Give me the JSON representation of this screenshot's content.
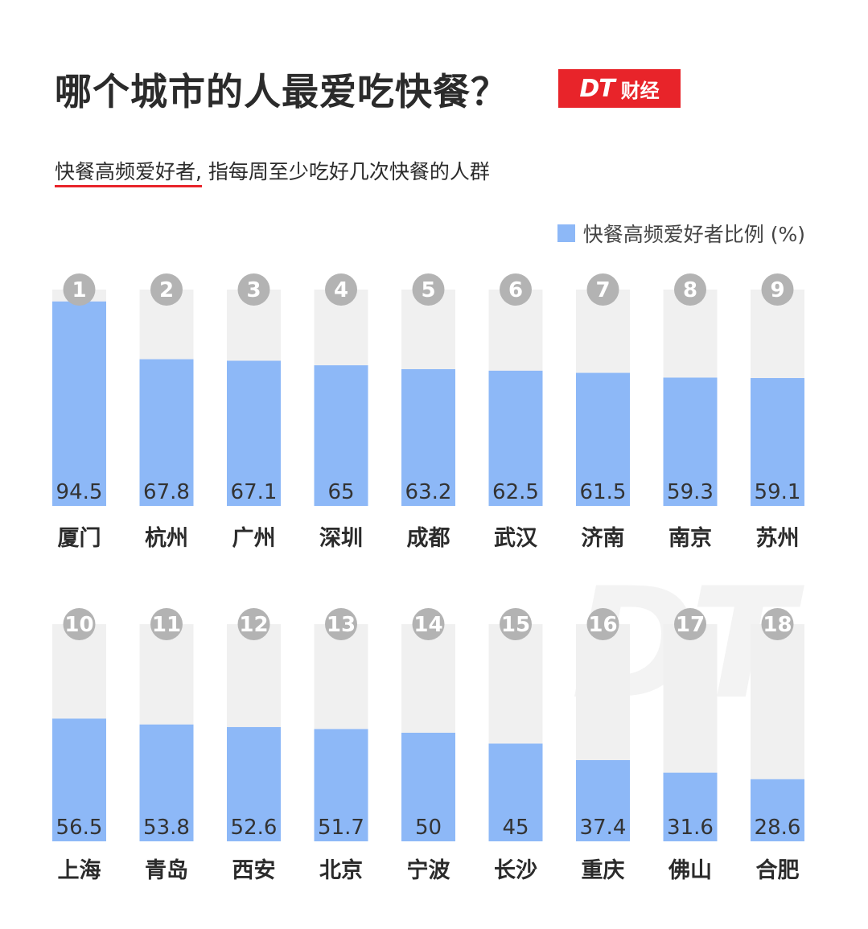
{
  "header": {
    "title": "哪个城市的人最爱吃快餐？",
    "brand_logo": "DT",
    "brand_name": "财经",
    "subtitle_term": "快餐高频爱好者,",
    "subtitle_rest": " 指每周至少吃好几次快餐的人群"
  },
  "watermark": "DT",
  "chart_data": {
    "type": "bar",
    "legend": "快餐高频爱好者比例 (%)",
    "legend_position": "top-right",
    "ylim": [
      0,
      100
    ],
    "colors": {
      "bar": "#8db8f7",
      "track": "#f0f0f0",
      "badge": "#b3b3b3"
    },
    "categories": [
      "厦门",
      "杭州",
      "广州",
      "深圳",
      "成都",
      "武汉",
      "济南",
      "南京",
      "苏州",
      "上海",
      "青岛",
      "西安",
      "北京",
      "宁波",
      "长沙",
      "重庆",
      "佛山",
      "合肥"
    ],
    "ranks": [
      "1",
      "2",
      "3",
      "4",
      "5",
      "6",
      "7",
      "8",
      "9",
      "10",
      "11",
      "12",
      "13",
      "14",
      "15",
      "16",
      "17",
      "18"
    ],
    "values": [
      94.5,
      67.8,
      67.1,
      65,
      63.2,
      62.5,
      61.5,
      59.3,
      59.1,
      56.5,
      53.8,
      52.6,
      51.7,
      50,
      45,
      37.4,
      31.6,
      28.6
    ],
    "value_labels": [
      "94.5",
      "67.8",
      "67.1",
      "65",
      "63.2",
      "62.5",
      "61.5",
      "59.3",
      "59.1",
      "56.5",
      "53.8",
      "52.6",
      "51.7",
      "50",
      "45",
      "37.4",
      "31.6",
      "28.6"
    ]
  }
}
